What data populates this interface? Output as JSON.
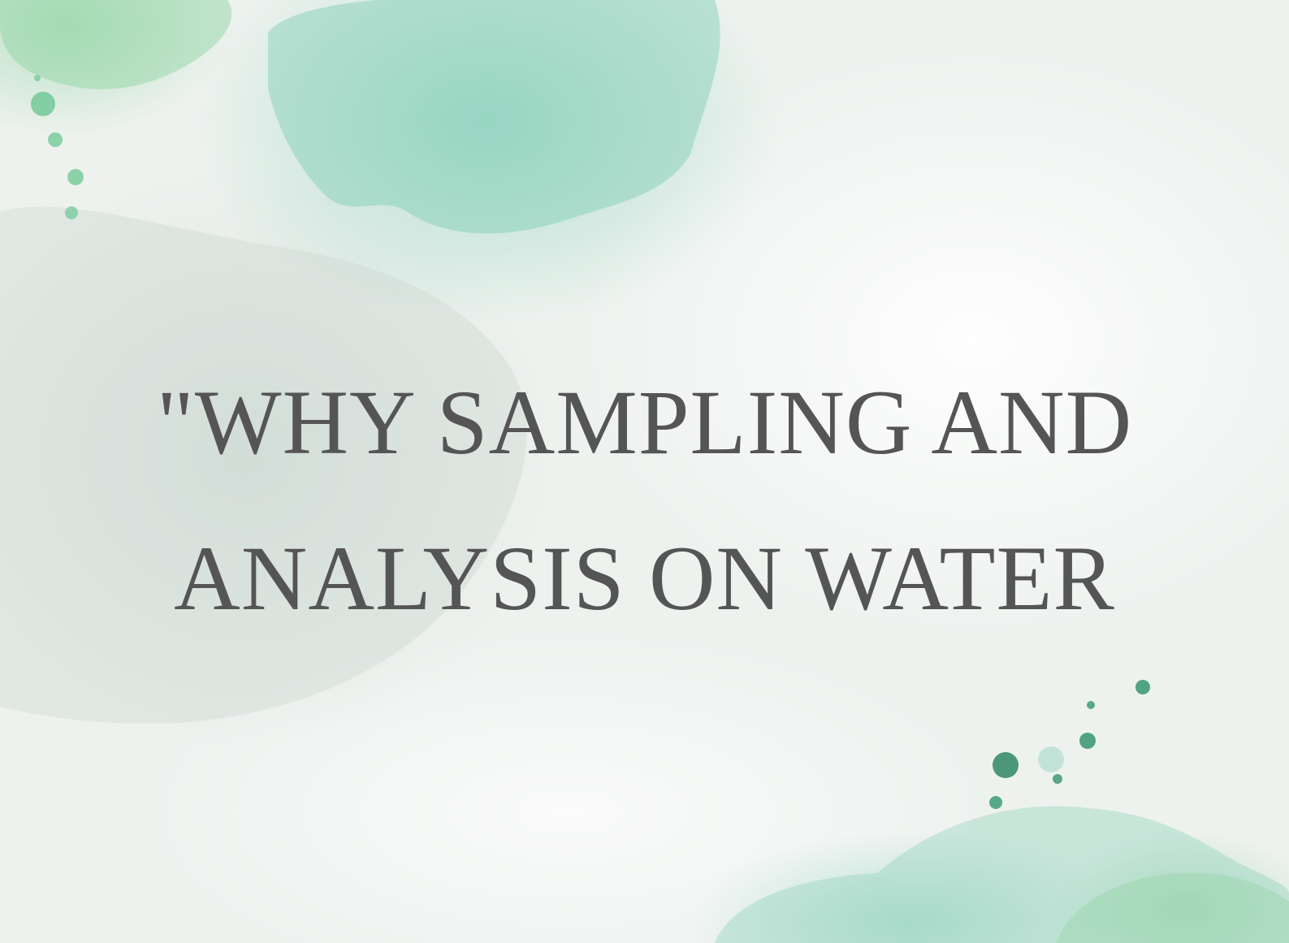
{
  "slide": {
    "title_line_1": "\"WHY SAMPLING AND",
    "title_line_2": "ANALYSIS ON WATER"
  },
  "colors": {
    "text": "#555555",
    "watercolor_mint": "#7ccdb4",
    "watercolor_green": "#8cd2a0",
    "splatter_dark": "#3e8f72",
    "background": "#eef2ef"
  }
}
